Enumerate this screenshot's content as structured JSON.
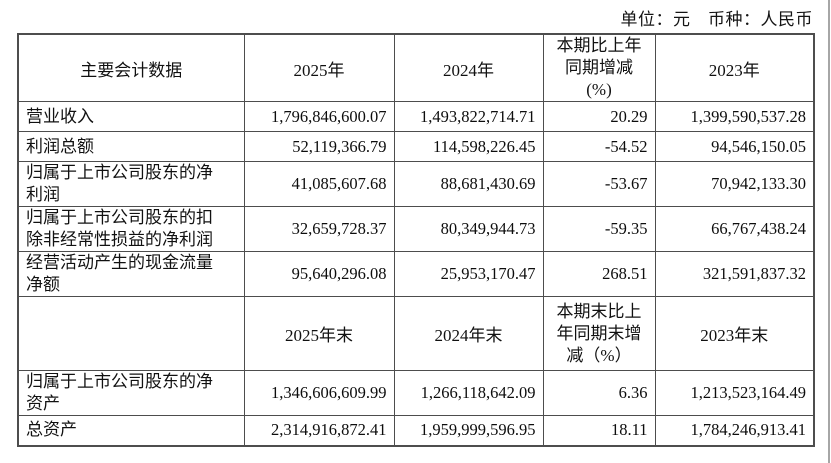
{
  "page": {
    "unit_note": "单位：元　币种：人民币"
  },
  "table": {
    "period_header": {
      "label": "主要会计数据",
      "y2025": "2025年",
      "y2024": "2024年",
      "change_lines": [
        "本期比上年",
        "同期增减",
        "(%)"
      ],
      "y2023": "2023年"
    },
    "period_rows": [
      {
        "label": "营业收入",
        "v2025": "1,796,846,600.07",
        "v2024": "1,493,822,714.71",
        "change": "20.29",
        "v2023": "1,399,590,537.28"
      },
      {
        "label": "利润总额",
        "v2025": "52,119,366.79",
        "v2024": "114,598,226.45",
        "change": "-54.52",
        "v2023": "94,546,150.05"
      },
      {
        "label": "归属于上市公司股东的净\n利润",
        "v2025": "41,085,607.68",
        "v2024": "88,681,430.69",
        "change": "-53.67",
        "v2023": "70,942,133.30"
      },
      {
        "label": "归属于上市公司股东的扣\n除非经常性损益的净利润",
        "v2025": "32,659,728.37",
        "v2024": "80,349,944.73",
        "change": "-59.35",
        "v2023": "66,767,438.24"
      },
      {
        "label": "经营活动产生的现金流量\n净额",
        "v2025": "95,640,296.08",
        "v2024": "25,953,170.47",
        "change": "268.51",
        "v2023": "321,591,837.32"
      }
    ],
    "end_header": {
      "label": "",
      "y2025": "2025年末",
      "y2024": "2024年末",
      "change_lines": [
        "本期末比上",
        "年同期末增",
        "减（%）"
      ],
      "y2023": "2023年末"
    },
    "end_rows": [
      {
        "label": "归属于上市公司股东的净\n资产",
        "v2025": "1,346,606,609.99",
        "v2024": "1,266,118,642.09",
        "change": "6.36",
        "v2023": "1,213,523,164.49"
      },
      {
        "label": "总资产",
        "v2025": "2,314,916,872.41",
        "v2024": "1,959,999,596.95",
        "change": "18.11",
        "v2023": "1,784,246,913.41"
      }
    ]
  }
}
